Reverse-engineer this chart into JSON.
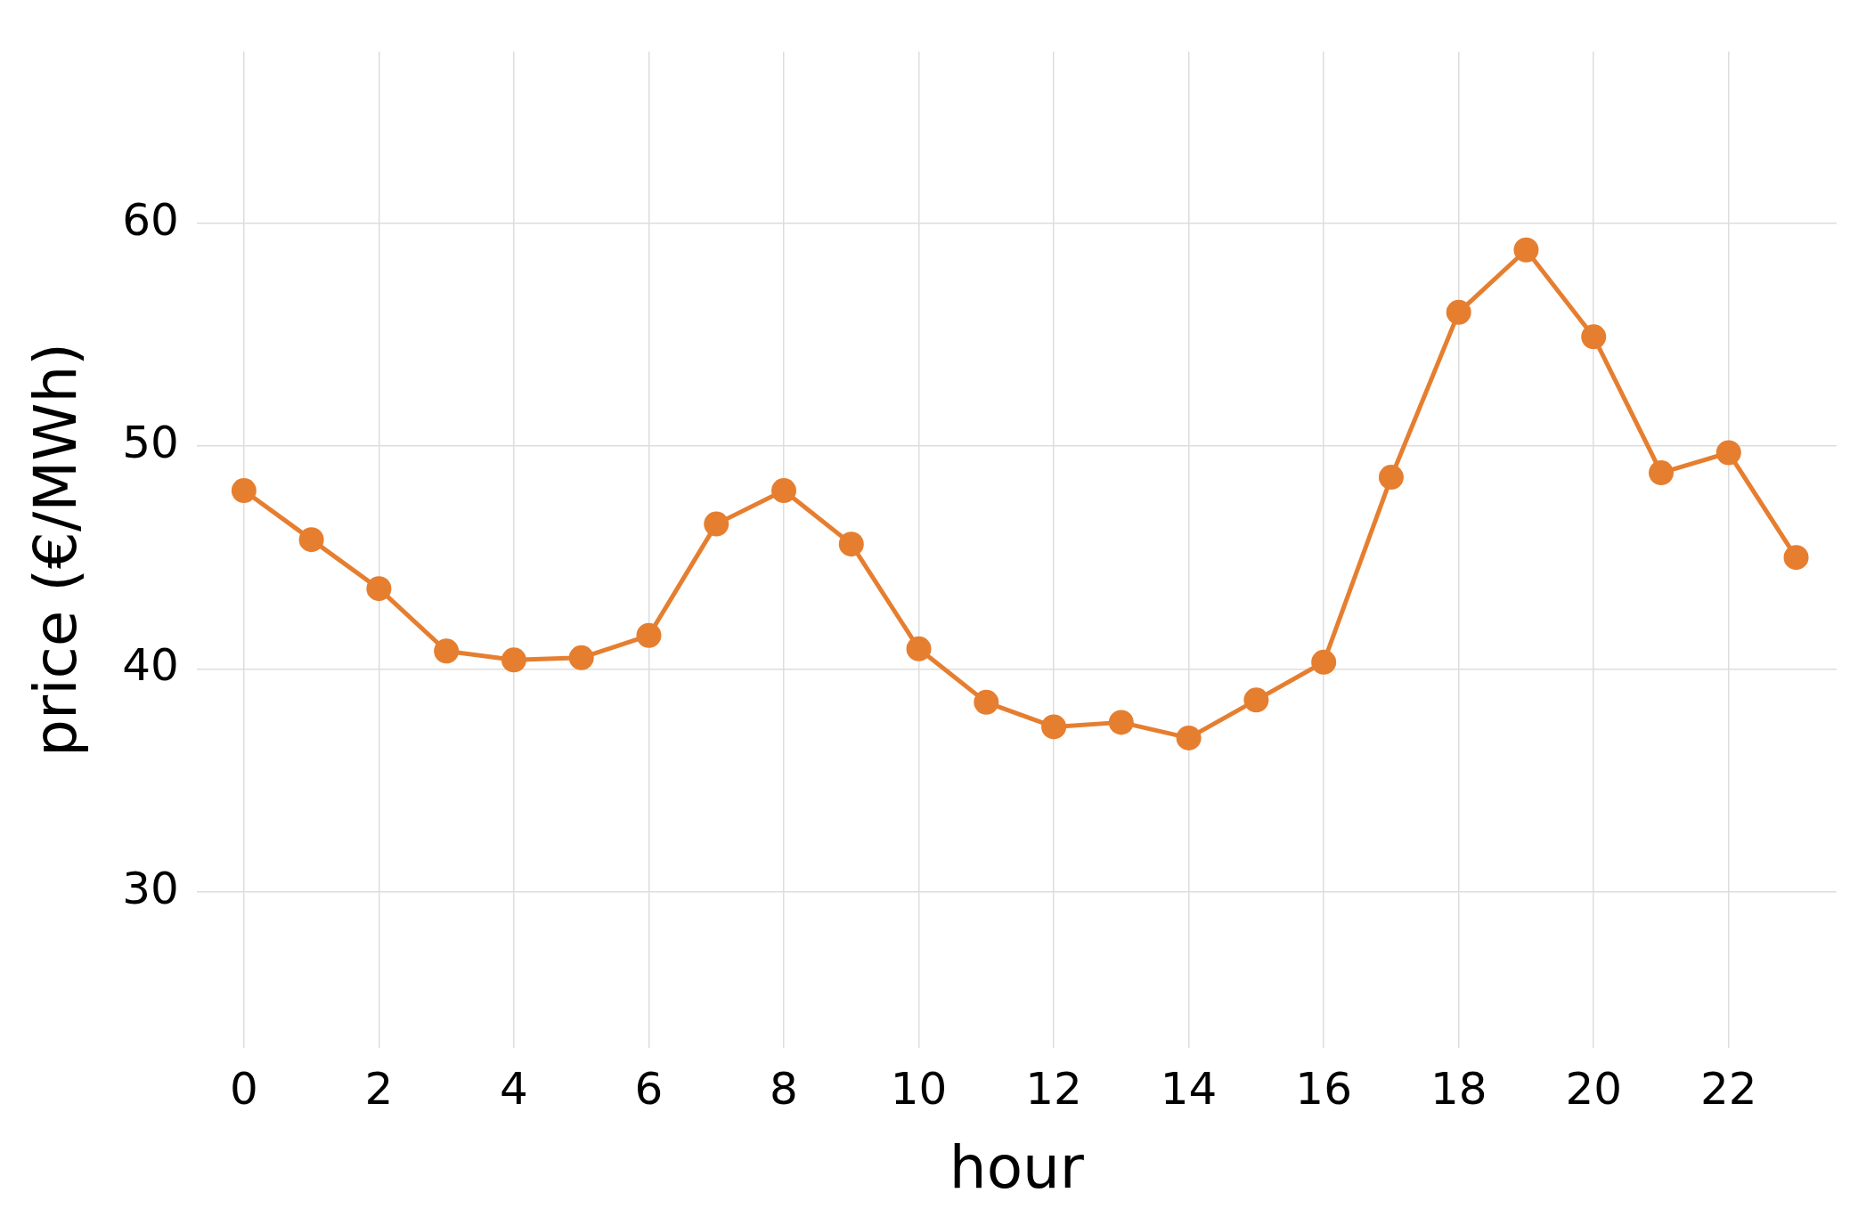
{
  "chart_data": {
    "type": "line",
    "xlabel": "hour",
    "ylabel": "price (€/MWh)",
    "x": [
      0,
      1,
      2,
      3,
      4,
      5,
      6,
      7,
      8,
      9,
      10,
      11,
      12,
      13,
      14,
      15,
      16,
      17,
      18,
      19,
      20,
      21,
      22,
      23
    ],
    "series": [
      {
        "color": "#e67e30",
        "values": [
          48.0,
          45.8,
          43.6,
          40.8,
          40.4,
          40.5,
          41.5,
          46.5,
          48.0,
          45.6,
          40.9,
          38.5,
          37.4,
          37.6,
          36.9,
          38.6,
          40.3,
          48.6,
          56.0,
          58.8,
          54.9,
          48.8,
          49.7,
          45.0
        ]
      }
    ],
    "xlim": [
      -0.7,
      23.6
    ],
    "ylim": [
      23,
      67.7
    ],
    "xticks": [
      0,
      2,
      4,
      6,
      8,
      10,
      12,
      14,
      16,
      18,
      20,
      22
    ],
    "yticks": [
      30,
      40,
      50,
      60
    ],
    "grid": true,
    "marker": "circle",
    "line_style": "solid",
    "legend": false
  }
}
